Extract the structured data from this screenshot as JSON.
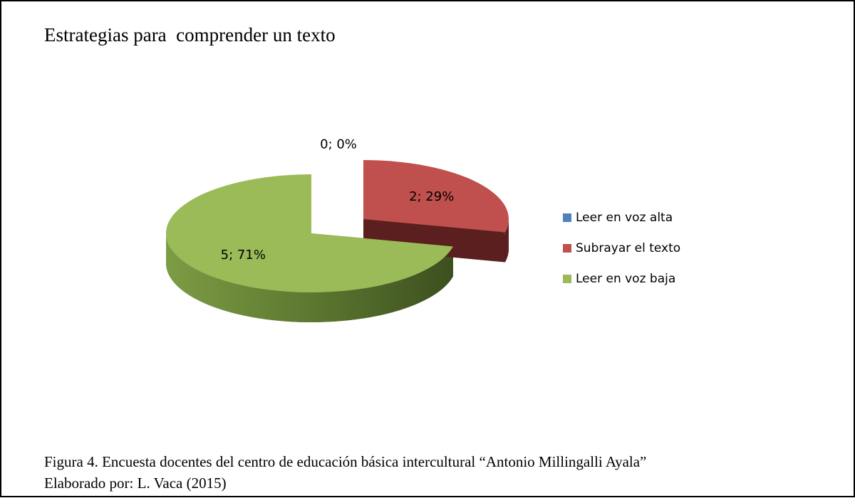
{
  "chart_data": {
    "type": "pie",
    "title": "Estrategias para  comprender un texto",
    "categories": [
      "Leer en voz alta",
      "Subrayar el texto",
      "Leer en voz baja"
    ],
    "values": [
      0,
      2,
      5
    ],
    "value_labels": [
      "0; 0%",
      "2; 29%",
      "5; 71%"
    ],
    "colors": [
      "#4f81bd",
      "#c0504d",
      "#9bbb59"
    ],
    "legend": "right"
  },
  "caption": [
    "Figura 4. Encuesta docentes del centro de educación básica intercultural “Antonio Millingalli Ayala”",
    "Elaborado por: L. Vaca (2015)"
  ]
}
